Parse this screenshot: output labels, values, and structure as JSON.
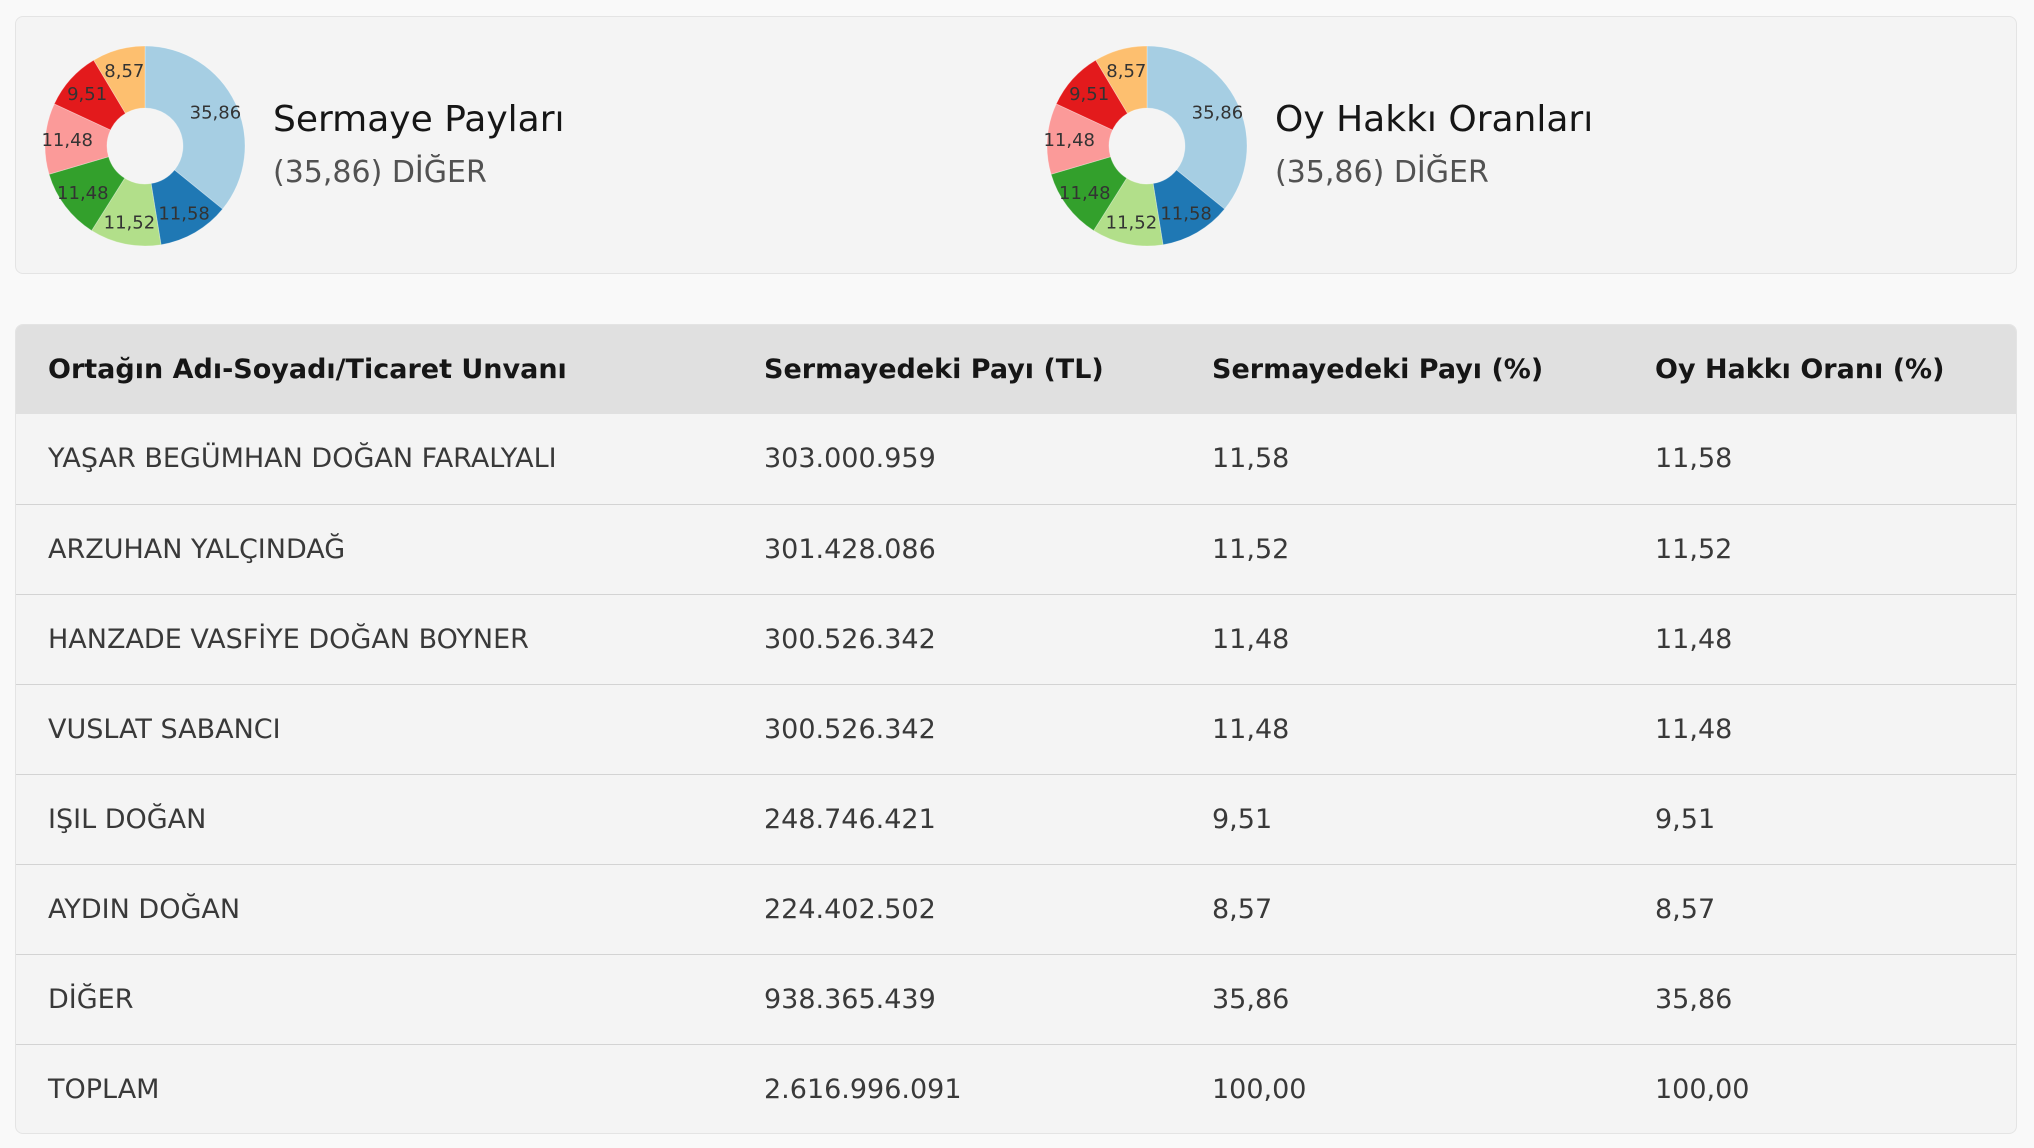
{
  "colors": {
    "slice_1": "#a6cee3",
    "slice_2": "#1f78b4",
    "slice_3": "#b2df8a",
    "slice_4": "#33a02c",
    "slice_5": "#fb9a99",
    "slice_6": "#e31a1c",
    "slice_7": "#fdbf6f"
  },
  "chart_data": [
    {
      "type": "pie",
      "title": "Sermaye Payları",
      "subtitle": "(35,86) DİĞER",
      "slices": [
        {
          "label": "35,86",
          "value": 35.86
        },
        {
          "label": "11,58",
          "value": 11.58
        },
        {
          "label": "11,52",
          "value": 11.52
        },
        {
          "label": "11,48",
          "value": 11.48
        },
        {
          "label": "11,48",
          "value": 11.48
        },
        {
          "label": "9,51",
          "value": 9.51
        },
        {
          "label": "8,57",
          "value": 8.57
        }
      ]
    },
    {
      "type": "pie",
      "title": "Oy Hakkı Oranları",
      "subtitle": "(35,86) DİĞER",
      "slices": [
        {
          "label": "35,86",
          "value": 35.86
        },
        {
          "label": "11,58",
          "value": 11.58
        },
        {
          "label": "11,52",
          "value": 11.52
        },
        {
          "label": "11,48",
          "value": 11.48
        },
        {
          "label": "11,48",
          "value": 11.48
        },
        {
          "label": "9,51",
          "value": 9.51
        },
        {
          "label": "8,57",
          "value": 8.57
        }
      ]
    }
  ],
  "table": {
    "headers": [
      "Ortağın Adı-Soyadı/Ticaret Unvanı",
      "Sermayedeki Payı (TL)",
      "Sermayedeki Payı (%)",
      "Oy Hakkı Oranı (%)"
    ],
    "rows": [
      [
        "YAŞAR BEGÜMHAN DOĞAN FARALYALI",
        "303.000.959",
        "11,58",
        "11,58"
      ],
      [
        "ARZUHAN YALÇINDAĞ",
        "301.428.086",
        "11,52",
        "11,52"
      ],
      [
        "HANZADE VASFİYE DOĞAN BOYNER",
        "300.526.342",
        "11,48",
        "11,48"
      ],
      [
        "VUSLAT SABANCI",
        "300.526.342",
        "11,48",
        "11,48"
      ],
      [
        "IŞIL DOĞAN",
        "248.746.421",
        "9,51",
        "9,51"
      ],
      [
        "AYDIN DOĞAN",
        "224.402.502",
        "8,57",
        "8,57"
      ],
      [
        "DİĞER",
        "938.365.439",
        "35,86",
        "35,86"
      ],
      [
        "TOPLAM",
        "2.616.996.091",
        "100,00",
        "100,00"
      ]
    ]
  }
}
